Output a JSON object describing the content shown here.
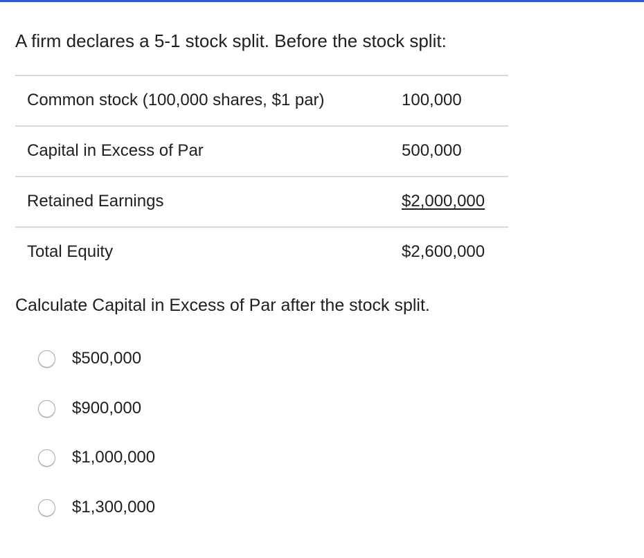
{
  "accent_color": "#2a5bd7",
  "intro": "A firm declares a 5-1 stock split. Before the stock split:",
  "table": [
    {
      "label": "Common stock (100,000 shares, $1 par)",
      "value": "100,000"
    },
    {
      "label": "Capital in Excess of Par",
      "value": "500,000"
    },
    {
      "label": "Retained Earnings",
      "value": "$2,000,000"
    },
    {
      "label": "Total Equity",
      "value": "$2,600,000"
    }
  ],
  "question": "Calculate Capital in Excess of Par after the stock split.",
  "options": [
    "$500,000",
    "$900,000",
    "$1,000,000",
    "$1,300,000"
  ]
}
